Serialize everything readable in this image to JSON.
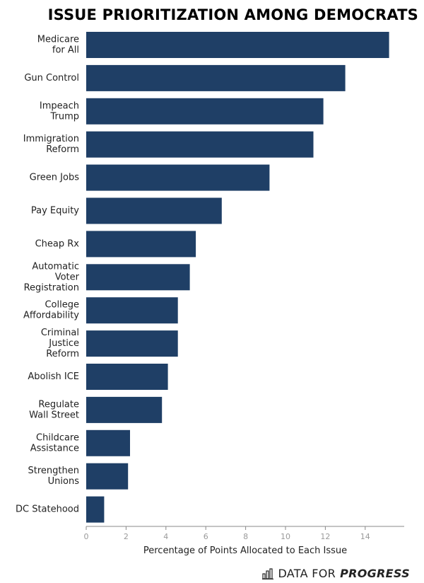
{
  "colors": {
    "bar": "#1f3f66",
    "axis": "#888888",
    "tick_text": "#9a9a9a",
    "text": "#222222"
  },
  "brand": {
    "icon": "bar-chart-icon",
    "name": "DATA FOR",
    "emphasis": "PROGRESS"
  },
  "chart_data": {
    "type": "bar",
    "orientation": "horizontal",
    "title": "ISSUE PRIORITIZATION AMONG DEMOCRATS",
    "xlabel": "Percentage of Points Allocated to Each Issue",
    "ylabel": "",
    "xlim": [
      0,
      16
    ],
    "xticks": [
      0,
      2,
      4,
      6,
      8,
      10,
      12,
      14
    ],
    "grid": false,
    "categories": [
      [
        "Medicare",
        "for All"
      ],
      [
        "Gun Control"
      ],
      [
        "Impeach",
        "Trump"
      ],
      [
        "Immigration",
        "Reform"
      ],
      [
        "Green Jobs"
      ],
      [
        "Pay Equity"
      ],
      [
        "Cheap Rx"
      ],
      [
        "Automatic",
        "Voter",
        "Registration"
      ],
      [
        "College",
        "Affordability"
      ],
      [
        "Criminal",
        "Justice",
        "Reform"
      ],
      [
        "Abolish ICE"
      ],
      [
        "Regulate",
        "Wall Street"
      ],
      [
        "Childcare",
        "Assistance"
      ],
      [
        "Strengthen",
        "Unions"
      ],
      [
        "DC Statehood"
      ]
    ],
    "values": [
      15.2,
      13.0,
      11.9,
      11.4,
      9.2,
      6.8,
      5.5,
      5.2,
      4.6,
      4.6,
      4.1,
      3.8,
      2.2,
      2.1,
      0.9
    ]
  }
}
